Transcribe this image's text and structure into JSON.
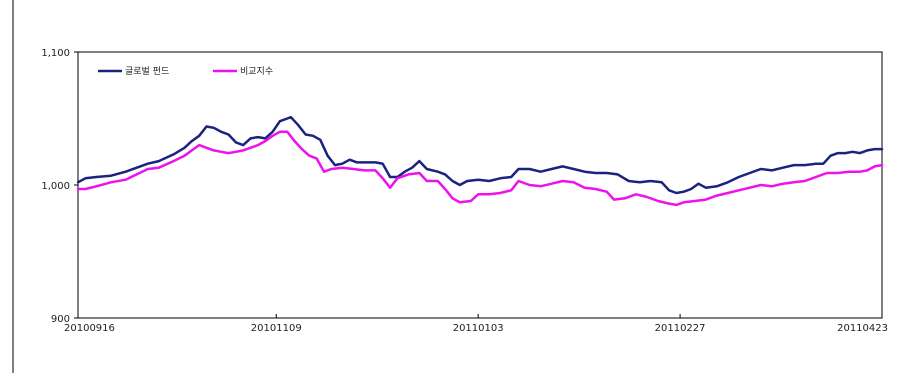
{
  "chart_data": {
    "type": "line",
    "title": "",
    "xlabel": "",
    "ylabel": "",
    "ylim": [
      900,
      1100
    ],
    "y_ticks": [
      900,
      1000,
      1100
    ],
    "y_tick_labels": [
      "900",
      "1,000",
      "1,100"
    ],
    "x_range": [
      "2010-09-16",
      "2011-04-23"
    ],
    "x_ticks": [
      {
        "date": "2010-09-16",
        "label": "20100916"
      },
      {
        "date": "2010-11-09",
        "label": "20101109"
      },
      {
        "date": "2011-01-03",
        "label": "20110103"
      },
      {
        "date": "2011-02-27",
        "label": "20110227"
      },
      {
        "date": "2011-04-23",
        "label": "20110423"
      }
    ],
    "grid": false,
    "legend_position": "top-left",
    "series": [
      {
        "name": "글로벌 펀드",
        "color": "#1a237e",
        "points": [
          [
            "2010-09-16",
            1002
          ],
          [
            "2010-09-18",
            1005
          ],
          [
            "2010-09-21",
            1006
          ],
          [
            "2010-09-25",
            1007
          ],
          [
            "2010-09-29",
            1010
          ],
          [
            "2010-10-02",
            1013
          ],
          [
            "2010-10-05",
            1016
          ],
          [
            "2010-10-08",
            1018
          ],
          [
            "2010-10-12",
            1023
          ],
          [
            "2010-10-15",
            1028
          ],
          [
            "2010-10-17",
            1033
          ],
          [
            "2010-10-19",
            1037
          ],
          [
            "2010-10-21",
            1044
          ],
          [
            "2010-10-23",
            1043
          ],
          [
            "2010-10-25",
            1040
          ],
          [
            "2010-10-27",
            1038
          ],
          [
            "2010-10-29",
            1032
          ],
          [
            "2010-10-31",
            1030
          ],
          [
            "2010-11-02",
            1035
          ],
          [
            "2010-11-04",
            1036
          ],
          [
            "2010-11-06",
            1035
          ],
          [
            "2010-11-08",
            1040
          ],
          [
            "2010-11-10",
            1048
          ],
          [
            "2010-11-12",
            1050
          ],
          [
            "2010-11-13",
            1051
          ],
          [
            "2010-11-15",
            1045
          ],
          [
            "2010-11-17",
            1038
          ],
          [
            "2010-11-19",
            1037
          ],
          [
            "2010-11-21",
            1034
          ],
          [
            "2010-11-23",
            1022
          ],
          [
            "2010-11-25",
            1015
          ],
          [
            "2010-11-27",
            1016
          ],
          [
            "2010-11-29",
            1019
          ],
          [
            "2010-12-01",
            1017
          ],
          [
            "2010-12-03",
            1017
          ],
          [
            "2010-12-06",
            1017
          ],
          [
            "2010-12-08",
            1016
          ],
          [
            "2010-12-10",
            1006
          ],
          [
            "2010-12-12",
            1006
          ],
          [
            "2010-12-14",
            1010
          ],
          [
            "2010-12-16",
            1013
          ],
          [
            "2010-12-18",
            1018
          ],
          [
            "2010-12-20",
            1012
          ],
          [
            "2010-12-23",
            1010
          ],
          [
            "2010-12-25",
            1008
          ],
          [
            "2010-12-27",
            1003
          ],
          [
            "2010-12-29",
            1000
          ],
          [
            "2010-12-31",
            1003
          ],
          [
            "2011-01-03",
            1004
          ],
          [
            "2011-01-06",
            1003
          ],
          [
            "2011-01-09",
            1005
          ],
          [
            "2011-01-12",
            1006
          ],
          [
            "2011-01-14",
            1012
          ],
          [
            "2011-01-17",
            1012
          ],
          [
            "2011-01-20",
            1010
          ],
          [
            "2011-01-23",
            1012
          ],
          [
            "2011-01-26",
            1014
          ],
          [
            "2011-01-29",
            1012
          ],
          [
            "2011-02-01",
            1010
          ],
          [
            "2011-02-04",
            1009
          ],
          [
            "2011-02-07",
            1009
          ],
          [
            "2011-02-10",
            1008
          ],
          [
            "2011-02-13",
            1003
          ],
          [
            "2011-02-16",
            1002
          ],
          [
            "2011-02-19",
            1003
          ],
          [
            "2011-02-22",
            1002
          ],
          [
            "2011-02-24",
            996
          ],
          [
            "2011-02-26",
            994
          ],
          [
            "2011-02-28",
            995
          ],
          [
            "2011-03-02",
            997
          ],
          [
            "2011-03-04",
            1001
          ],
          [
            "2011-03-06",
            998
          ],
          [
            "2011-03-09",
            999
          ],
          [
            "2011-03-12",
            1002
          ],
          [
            "2011-03-15",
            1006
          ],
          [
            "2011-03-18",
            1009
          ],
          [
            "2011-03-21",
            1012
          ],
          [
            "2011-03-24",
            1011
          ],
          [
            "2011-03-27",
            1013
          ],
          [
            "2011-03-30",
            1015
          ],
          [
            "2011-04-02",
            1015
          ],
          [
            "2011-04-05",
            1016
          ],
          [
            "2011-04-07",
            1016
          ],
          [
            "2011-04-09",
            1022
          ],
          [
            "2011-04-11",
            1024
          ],
          [
            "2011-04-13",
            1024
          ],
          [
            "2011-04-15",
            1025
          ],
          [
            "2011-04-17",
            1024
          ],
          [
            "2011-04-19",
            1026
          ],
          [
            "2011-04-21",
            1027
          ],
          [
            "2011-04-23",
            1027
          ]
        ]
      },
      {
        "name": "비교지수",
        "color": "#ee11ee",
        "points": [
          [
            "2010-09-16",
            997
          ],
          [
            "2010-09-18",
            997
          ],
          [
            "2010-09-21",
            999
          ],
          [
            "2010-09-25",
            1002
          ],
          [
            "2010-09-29",
            1004
          ],
          [
            "2010-10-02",
            1008
          ],
          [
            "2010-10-05",
            1012
          ],
          [
            "2010-10-08",
            1013
          ],
          [
            "2010-10-12",
            1018
          ],
          [
            "2010-10-15",
            1022
          ],
          [
            "2010-10-17",
            1026
          ],
          [
            "2010-10-19",
            1030
          ],
          [
            "2010-10-21",
            1028
          ],
          [
            "2010-10-23",
            1026
          ],
          [
            "2010-10-25",
            1025
          ],
          [
            "2010-10-27",
            1024
          ],
          [
            "2010-10-29",
            1025
          ],
          [
            "2010-10-31",
            1026
          ],
          [
            "2010-11-02",
            1028
          ],
          [
            "2010-11-04",
            1030
          ],
          [
            "2010-11-06",
            1033
          ],
          [
            "2010-11-08",
            1037
          ],
          [
            "2010-11-10",
            1040
          ],
          [
            "2010-11-12",
            1040
          ],
          [
            "2010-11-14",
            1033
          ],
          [
            "2010-11-16",
            1027
          ],
          [
            "2010-11-18",
            1022
          ],
          [
            "2010-11-20",
            1020
          ],
          [
            "2010-11-22",
            1010
          ],
          [
            "2010-11-24",
            1012
          ],
          [
            "2010-11-27",
            1013
          ],
          [
            "2010-11-30",
            1012
          ],
          [
            "2010-12-03",
            1011
          ],
          [
            "2010-12-06",
            1011
          ],
          [
            "2010-12-08",
            1005
          ],
          [
            "2010-12-10",
            998
          ],
          [
            "2010-12-12",
            1005
          ],
          [
            "2010-12-15",
            1008
          ],
          [
            "2010-12-18",
            1009
          ],
          [
            "2010-12-20",
            1003
          ],
          [
            "2010-12-23",
            1003
          ],
          [
            "2010-12-25",
            997
          ],
          [
            "2010-12-27",
            990
          ],
          [
            "2010-12-29",
            987
          ],
          [
            "2011-01-01",
            988
          ],
          [
            "2011-01-03",
            993
          ],
          [
            "2011-01-06",
            993
          ],
          [
            "2011-01-09",
            994
          ],
          [
            "2011-01-12",
            996
          ],
          [
            "2011-01-14",
            1003
          ],
          [
            "2011-01-17",
            1000
          ],
          [
            "2011-01-20",
            999
          ],
          [
            "2011-01-23",
            1001
          ],
          [
            "2011-01-26",
            1003
          ],
          [
            "2011-01-29",
            1002
          ],
          [
            "2011-02-01",
            998
          ],
          [
            "2011-02-04",
            997
          ],
          [
            "2011-02-07",
            995
          ],
          [
            "2011-02-09",
            989
          ],
          [
            "2011-02-12",
            990
          ],
          [
            "2011-02-15",
            993
          ],
          [
            "2011-02-18",
            991
          ],
          [
            "2011-02-21",
            988
          ],
          [
            "2011-02-24",
            986
          ],
          [
            "2011-02-26",
            985
          ],
          [
            "2011-02-28",
            987
          ],
          [
            "2011-03-03",
            988
          ],
          [
            "2011-03-06",
            989
          ],
          [
            "2011-03-09",
            992
          ],
          [
            "2011-03-12",
            994
          ],
          [
            "2011-03-15",
            996
          ],
          [
            "2011-03-18",
            998
          ],
          [
            "2011-03-21",
            1000
          ],
          [
            "2011-03-24",
            999
          ],
          [
            "2011-03-27",
            1001
          ],
          [
            "2011-03-30",
            1002
          ],
          [
            "2011-04-02",
            1003
          ],
          [
            "2011-04-05",
            1006
          ],
          [
            "2011-04-08",
            1009
          ],
          [
            "2011-04-11",
            1009
          ],
          [
            "2011-04-14",
            1010
          ],
          [
            "2011-04-17",
            1010
          ],
          [
            "2011-04-19",
            1011
          ],
          [
            "2011-04-21",
            1014
          ],
          [
            "2011-04-23",
            1015
          ]
        ]
      }
    ]
  }
}
